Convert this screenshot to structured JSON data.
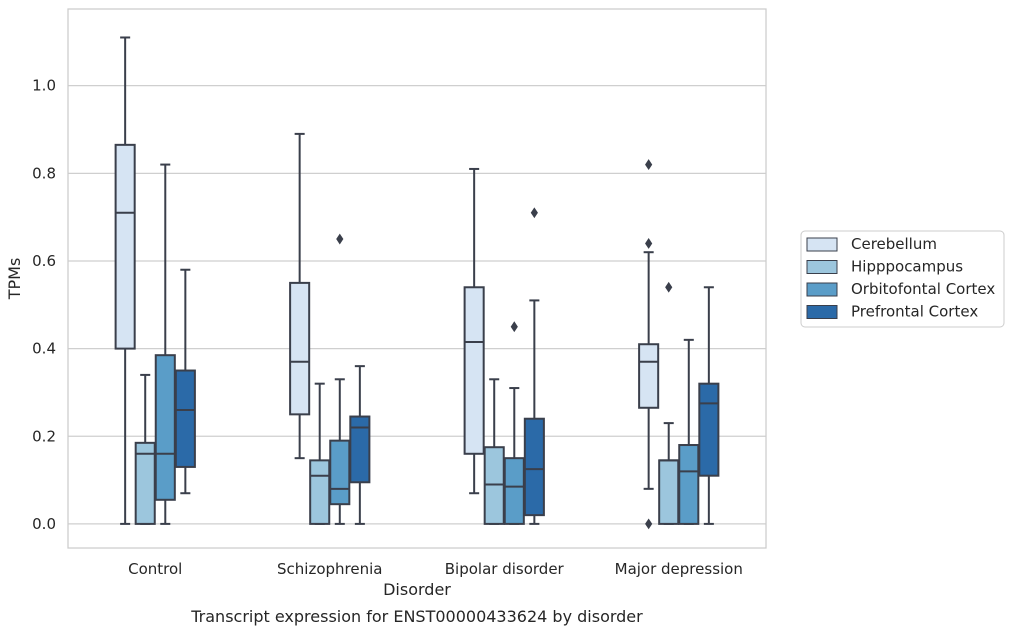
{
  "chart_data": {
    "type": "box",
    "xlabel": "Disorder",
    "ylabel": "TPMs",
    "caption": "Transcript expression for ENST00000433624 by disorder",
    "ylim": [
      -0.055,
      1.175
    ],
    "yticks": [
      "0.0",
      "0.2",
      "0.4",
      "0.6",
      "0.8",
      "1.0"
    ],
    "ytick_values": [
      0.0,
      0.2,
      0.4,
      0.6,
      0.8,
      1.0
    ],
    "grid": "horizontal",
    "legend_position": "right",
    "categories": [
      "Control",
      "Schizophrenia",
      "Bipolar disorder",
      "Major depression"
    ],
    "series": [
      {
        "name": "Cerebellum",
        "color": "#d6e4f3",
        "boxes": [
          {
            "whislo": 0.0,
            "q1": 0.4,
            "med": 0.71,
            "q3": 0.865,
            "whishi": 1.11,
            "fliers": []
          },
          {
            "whislo": 0.15,
            "q1": 0.25,
            "med": 0.37,
            "q3": 0.55,
            "whishi": 0.89,
            "fliers": []
          },
          {
            "whislo": 0.07,
            "q1": 0.16,
            "med": 0.415,
            "q3": 0.54,
            "whishi": 0.81,
            "fliers": []
          },
          {
            "whislo": 0.08,
            "q1": 0.265,
            "med": 0.37,
            "q3": 0.41,
            "whishi": 0.62,
            "fliers": [
              0.0,
              0.64,
              0.82
            ]
          }
        ]
      },
      {
        "name": "Hipppocampus",
        "color": "#9cc6dd",
        "boxes": [
          {
            "whislo": 0.0,
            "q1": 0.0,
            "med": 0.16,
            "q3": 0.185,
            "whishi": 0.34,
            "fliers": []
          },
          {
            "whislo": 0.0,
            "q1": 0.0,
            "med": 0.11,
            "q3": 0.145,
            "whishi": 0.32,
            "fliers": []
          },
          {
            "whislo": 0.0,
            "q1": 0.0,
            "med": 0.09,
            "q3": 0.175,
            "whishi": 0.33,
            "fliers": []
          },
          {
            "whislo": 0.0,
            "q1": 0.0,
            "med": 0.145,
            "q3": 0.145,
            "whishi": 0.23,
            "fliers": [
              0.54
            ]
          }
        ]
      },
      {
        "name": "Orbitofontal Cortex",
        "color": "#5a9dc8",
        "boxes": [
          {
            "whislo": 0.0,
            "q1": 0.055,
            "med": 0.16,
            "q3": 0.385,
            "whishi": 0.82,
            "fliers": []
          },
          {
            "whislo": 0.0,
            "q1": 0.045,
            "med": 0.08,
            "q3": 0.19,
            "whishi": 0.33,
            "fliers": [
              0.65
            ]
          },
          {
            "whislo": 0.0,
            "q1": 0.0,
            "med": 0.085,
            "q3": 0.15,
            "whishi": 0.31,
            "fliers": [
              0.45
            ]
          },
          {
            "whislo": 0.0,
            "q1": 0.0,
            "med": 0.12,
            "q3": 0.18,
            "whishi": 0.42,
            "fliers": []
          }
        ]
      },
      {
        "name": "Prefrontal Cortex",
        "color": "#2b6aa8",
        "boxes": [
          {
            "whislo": 0.07,
            "q1": 0.13,
            "med": 0.26,
            "q3": 0.35,
            "whishi": 0.58,
            "fliers": []
          },
          {
            "whislo": 0.0,
            "q1": 0.095,
            "med": 0.22,
            "q3": 0.245,
            "whishi": 0.36,
            "fliers": []
          },
          {
            "whislo": 0.0,
            "q1": 0.02,
            "med": 0.125,
            "q3": 0.24,
            "whishi": 0.51,
            "fliers": [
              0.71
            ]
          },
          {
            "whislo": 0.0,
            "q1": 0.11,
            "med": 0.275,
            "q3": 0.32,
            "whishi": 0.54,
            "fliers": []
          }
        ]
      }
    ]
  }
}
